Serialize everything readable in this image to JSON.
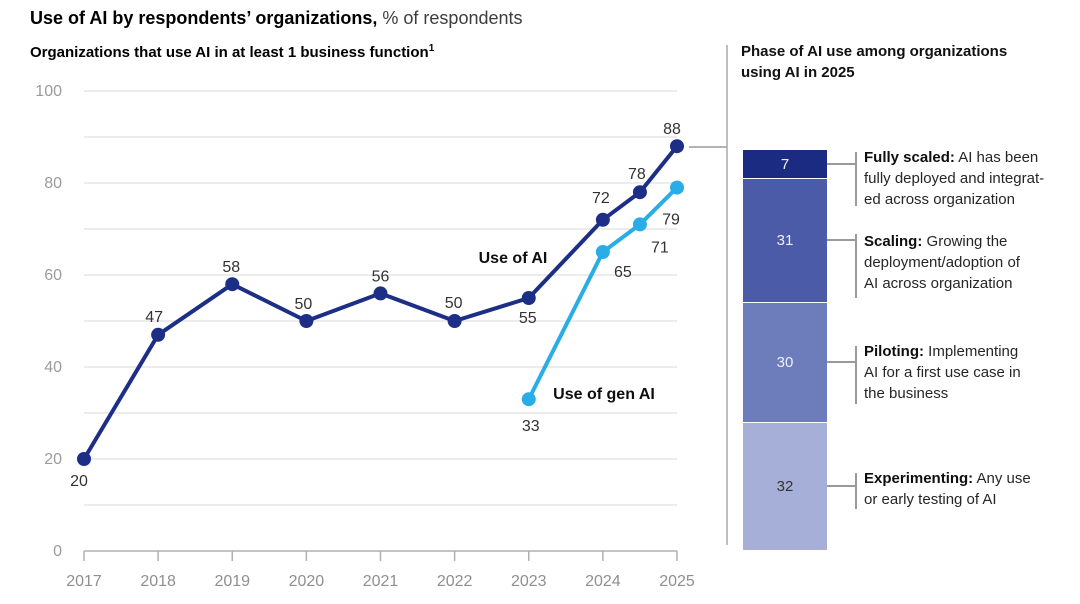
{
  "header": {
    "title_bold": "Use of AI by respondents’ organizations,",
    "title_suffix": "% of respondents"
  },
  "left_chart": {
    "subtitle": "Organizations that use AI in at least 1 business function",
    "footnote_marker": "1"
  },
  "right_panel": {
    "heading": "Phase of AI use among organizations using AI in 2025"
  },
  "colors": {
    "use_of_ai_line": "#1d2e87",
    "use_of_gen_ai_line": "#29ade6",
    "gridline": "#d8d8d8",
    "axis": "#b0b0b0",
    "axis_tick_label": "#9b9b9b",
    "data_label": "#333333",
    "callout_line": "#9a9a9a",
    "divider": "#a8a8a8"
  },
  "chart_data": [
    {
      "type": "line",
      "title": "Organizations that use AI in at least 1 business function",
      "units": "% of respondents",
      "xlabel": "",
      "ylabel": "",
      "ylim": [
        0,
        100
      ],
      "y_ticks": [
        0,
        20,
        40,
        60,
        80,
        100
      ],
      "x_tick_labels": [
        "2017",
        "2018",
        "2019",
        "2020",
        "2021",
        "2022",
        "2023",
        "2024",
        "2025"
      ],
      "grid": "horizontal gridlines every 10 from 10 to 100",
      "legend": "inline series labels",
      "series": [
        {
          "name": "Use of AI",
          "color": "#1d2e87",
          "x": [
            2017,
            2018,
            2019,
            2020,
            2021,
            2022,
            2023,
            2024,
            2024.5,
            2025
          ],
          "values": [
            20,
            47,
            58,
            50,
            56,
            50,
            55,
            72,
            78,
            88
          ]
        },
        {
          "name": "Use of gen AI",
          "color": "#29ade6",
          "x": [
            2023,
            2024,
            2024.5,
            2025
          ],
          "values": [
            33,
            65,
            71,
            79
          ]
        }
      ]
    },
    {
      "type": "bar",
      "stacked": true,
      "title": "Phase of AI use among organizations using AI in 2025",
      "total": 100,
      "segments": [
        {
          "label": "Fully scaled",
          "value": 7,
          "color": "#1c2b82",
          "value_text_color": "#eef0f8",
          "description_lines": [
            "AI has been",
            "fully deployed and integrat-",
            "ed across organization"
          ]
        },
        {
          "label": "Scaling",
          "value": 31,
          "color": "#4c5ba8",
          "value_text_color": "#eef0f8",
          "description_lines": [
            "Growing the",
            "deployment/adoption of",
            "AI across organization"
          ]
        },
        {
          "label": "Piloting",
          "value": 30,
          "color": "#6d7cba",
          "value_text_color": "#eef0f8",
          "description_lines": [
            "Implementing",
            "AI for a first use case in",
            "the business"
          ]
        },
        {
          "label": "Experimenting",
          "value": 32,
          "color": "#a6afd7",
          "value_text_color": "#333333",
          "description_lines": [
            "Any use",
            "or early testing of AI"
          ]
        }
      ]
    }
  ]
}
